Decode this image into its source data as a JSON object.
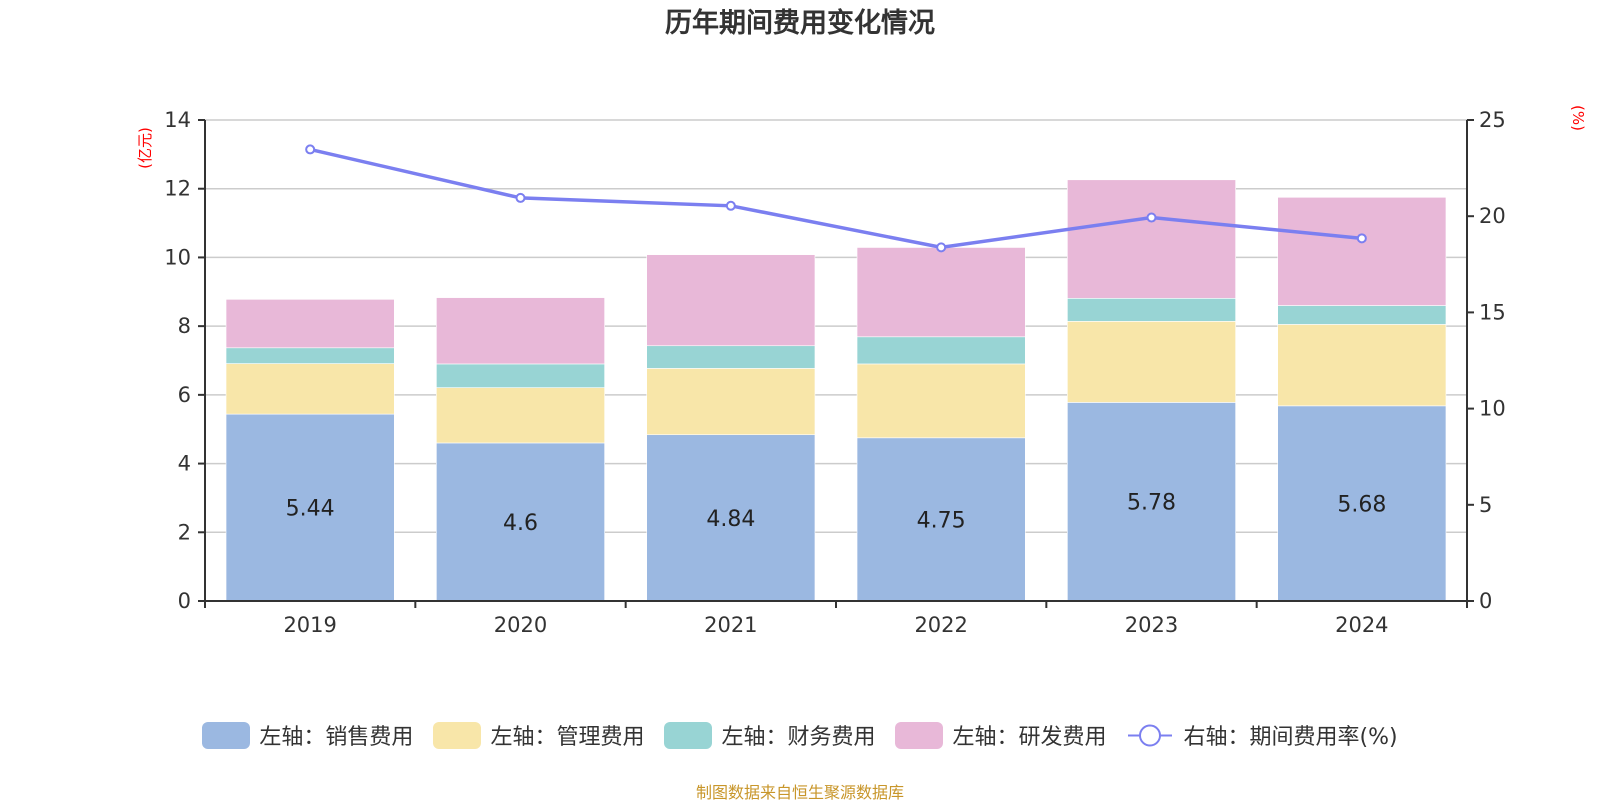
{
  "chart_data": {
    "type": "bar",
    "stacked": true,
    "title": "历年期间费用变化情况",
    "categories": [
      "2019",
      "2020",
      "2021",
      "2022",
      "2023",
      "2024"
    ],
    "left_axis": {
      "unit_label": "(亿元)",
      "ylim": [
        0,
        14
      ],
      "ticks": [
        "0",
        "2",
        "4",
        "6",
        "8",
        "10",
        "12",
        "14"
      ]
    },
    "right_axis": {
      "unit_label": "(%)",
      "ylim": [
        0,
        25
      ],
      "ticks": [
        "0",
        "5",
        "10",
        "15",
        "20",
        "25"
      ]
    },
    "grid": true,
    "legend_position": "bottom",
    "series": [
      {
        "name": "左轴：销售费用",
        "axis": "left",
        "type": "bar",
        "color": "#9bb8e1",
        "values": [
          5.44,
          4.6,
          4.84,
          4.75,
          5.78,
          5.68
        ],
        "data_labels": [
          "5.44",
          "4.6",
          "4.84",
          "4.75",
          "5.78",
          "5.68"
        ]
      },
      {
        "name": "左轴：管理费用",
        "axis": "left",
        "type": "bar",
        "color": "#f8e6a9",
        "values": [
          1.47,
          1.61,
          1.93,
          2.15,
          2.36,
          2.37
        ]
      },
      {
        "name": "左轴：财务费用",
        "axis": "left",
        "type": "bar",
        "color": "#98d4d4",
        "values": [
          0.46,
          0.69,
          0.66,
          0.79,
          0.67,
          0.55
        ]
      },
      {
        "name": "左轴：研发费用",
        "axis": "left",
        "type": "bar",
        "color": "#e8b8d8",
        "values": [
          1.41,
          1.93,
          2.65,
          2.6,
          3.45,
          3.15
        ]
      },
      {
        "name": "右轴：期间费用率(%)",
        "axis": "right",
        "type": "line",
        "color": "#7b7ff0",
        "values": [
          23.47,
          20.95,
          20.54,
          18.38,
          19.93,
          18.85
        ]
      }
    ]
  },
  "source_note": "制图数据来自恒生聚源数据库"
}
